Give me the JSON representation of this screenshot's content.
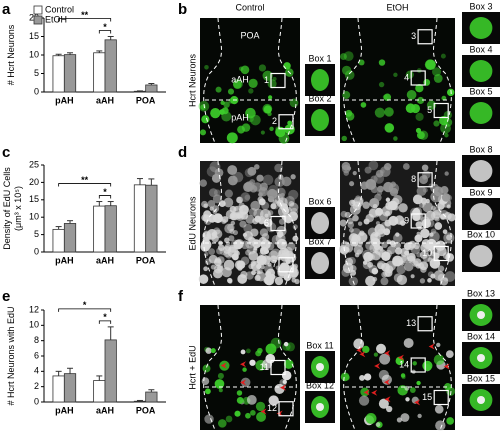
{
  "chart_data": [
    {
      "type": "bar",
      "label": "a",
      "ylabel": [
        "# Hcrt Neurons"
      ],
      "categories": [
        "pAH",
        "aAH",
        "POA"
      ],
      "series": [
        {
          "name": "Control",
          "color": "#ffffff",
          "values": [
            9.8,
            10.6,
            0.2
          ],
          "errors": [
            0.4,
            0.5,
            0.1
          ]
        },
        {
          "name": "EtOH",
          "color": "#999999",
          "values": [
            10.1,
            14.1,
            1.9
          ],
          "errors": [
            0.5,
            0.9,
            0.4
          ]
        }
      ],
      "ylim": [
        0,
        20
      ],
      "yticks": [
        0,
        5,
        10,
        15,
        20
      ],
      "annotations": [
        "**",
        "*"
      ],
      "legend": "upper left"
    },
    {
      "type": "bar",
      "label": "c",
      "ylabel": [
        "Density of EdU Cells",
        "(μm³ x 10⁵)"
      ],
      "categories": [
        "pAH",
        "aAH",
        "POA"
      ],
      "series": [
        {
          "color": "#ffffff",
          "values": [
            6.5,
            13.2,
            19.3
          ],
          "errors": [
            0.8,
            1.3,
            1.8
          ]
        },
        {
          "color": "#999999",
          "values": [
            8.2,
            13.3,
            19.2
          ],
          "errors": [
            0.8,
            1.2,
            1.8
          ]
        }
      ],
      "ylim": [
        0,
        25
      ],
      "yticks": [
        0,
        5,
        10,
        15,
        20,
        25
      ],
      "annotations": [
        "**",
        "*"
      ]
    },
    {
      "type": "bar",
      "label": "e",
      "ylabel": [
        "# Hcrt Neurons with EdU"
      ],
      "categories": [
        "pAH",
        "aAH",
        "POA"
      ],
      "series": [
        {
          "color": "#ffffff",
          "values": [
            3.4,
            2.8,
            0.1
          ],
          "errors": [
            0.6,
            0.6,
            0.1
          ]
        },
        {
          "color": "#999999",
          "values": [
            3.7,
            8.1,
            1.3
          ],
          "errors": [
            0.7,
            1.7,
            0.3
          ]
        }
      ],
      "ylim": [
        0,
        12
      ],
      "yticks": [
        0,
        2,
        4,
        6,
        8,
        10,
        12
      ],
      "annotations": [
        "*",
        "*"
      ]
    }
  ],
  "image_panels": [
    {
      "label": "b",
      "row_label": "Hcrt Neurons",
      "columns": [
        "Control",
        "EtOH"
      ],
      "regions": [
        "POA",
        "aAH",
        "pAH"
      ],
      "boxes": [
        {
          "number": "1",
          "label": "Box 1"
        },
        {
          "number": "2",
          "label": "Box 2"
        },
        {
          "number": "3",
          "label": "Box 3"
        },
        {
          "number": "4",
          "label": "Box 4"
        },
        {
          "number": "5",
          "label": "Box 5"
        }
      ]
    },
    {
      "label": "d",
      "row_label": "EdU Neurons",
      "boxes": [
        {
          "number": "6",
          "label": "Box 6"
        },
        {
          "number": "7",
          "label": "Box 7"
        },
        {
          "number": "8",
          "label": "Box 8"
        },
        {
          "number": "9",
          "label": "Box 9"
        },
        {
          "number": "10",
          "label": "Box 10"
        }
      ]
    },
    {
      "label": "f",
      "row_label": "Hcrt + EdU",
      "boxes": [
        {
          "number": "11",
          "label": "Box 11"
        },
        {
          "number": "12",
          "label": "Box 12"
        },
        {
          "number": "13",
          "label": "Box 13"
        },
        {
          "number": "14",
          "label": "Box 14"
        },
        {
          "number": "15",
          "label": "Box 15"
        }
      ]
    }
  ]
}
